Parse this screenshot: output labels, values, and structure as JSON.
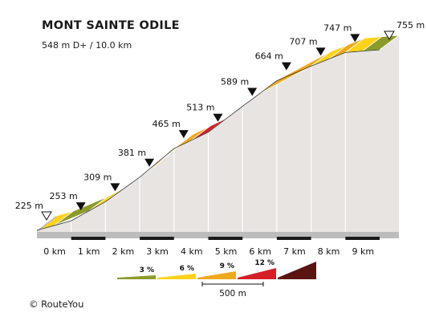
{
  "header": {
    "title": "MONT SAINTE ODILE",
    "subtitle": "548 m D+ / 10.0 km"
  },
  "footer": {
    "credit": "©  RouteYou"
  },
  "colors": {
    "side": "#e7e4e2",
    "base": "#bcbcbc",
    "axis_dark": "#1a1a1a",
    "grade_3": "#8b9b2a",
    "grade_6": "#ffd21a",
    "grade_9": "#f0a91c",
    "grade_12": "#d41f27",
    "grade_max": "#5a1412"
  },
  "chart_data": {
    "type": "area",
    "title": "MONT SAINTE ODILE",
    "subtitle": "548 m D+ / 10.0 km",
    "x_unit": "km",
    "y_unit": "m",
    "xlim": [
      0,
      10
    ],
    "x_ticks": [
      0,
      1,
      2,
      3,
      4,
      5,
      6,
      7,
      8,
      9
    ],
    "x_tick_labels": [
      "0 km",
      "1 km",
      "2 km",
      "3 km",
      "4 km",
      "5 km",
      "6 km",
      "7 km",
      "8 km",
      "9 km"
    ],
    "profile": {
      "x": [
        0,
        1,
        2,
        3,
        4,
        5,
        6,
        7,
        8,
        9,
        10
      ],
      "y": [
        225,
        253,
        309,
        381,
        465,
        513,
        589,
        664,
        707,
        747,
        755
      ]
    },
    "markers": [
      {
        "x": 0,
        "label": "225 m",
        "kind": "start"
      },
      {
        "x": 1,
        "label": "253 m",
        "kind": "point"
      },
      {
        "x": 2,
        "label": "309 m",
        "kind": "point"
      },
      {
        "x": 3,
        "label": "381 m",
        "kind": "point"
      },
      {
        "x": 4,
        "label": "465 m",
        "kind": "point"
      },
      {
        "x": 5,
        "label": "513 m",
        "kind": "point"
      },
      {
        "x": 6,
        "label": "589 m",
        "kind": "point"
      },
      {
        "x": 7,
        "label": "664 m",
        "kind": "point"
      },
      {
        "x": 8,
        "label": "707 m",
        "kind": "point"
      },
      {
        "x": 9,
        "label": "747 m",
        "kind": "point"
      },
      {
        "x": 10,
        "label": "755 m",
        "kind": "end"
      }
    ],
    "segments": [
      {
        "from": 0.0,
        "to": 0.5,
        "grade_class": "6"
      },
      {
        "from": 0.5,
        "to": 1.5,
        "grade_class": "3"
      },
      {
        "from": 1.5,
        "to": 2.0,
        "grade_class": "6"
      },
      {
        "from": 2.0,
        "to": 2.5,
        "grade_class": "9"
      },
      {
        "from": 2.5,
        "to": 3.0,
        "grade_class": "6"
      },
      {
        "from": 3.0,
        "to": 3.5,
        "grade_class": "9"
      },
      {
        "from": 3.5,
        "to": 4.0,
        "grade_class": "6"
      },
      {
        "from": 4.0,
        "to": 4.5,
        "grade_class": "9"
      },
      {
        "from": 4.5,
        "to": 5.0,
        "grade_class": "12"
      },
      {
        "from": 5.0,
        "to": 5.5,
        "grade_class": "6"
      },
      {
        "from": 5.5,
        "to": 6.0,
        "grade_class": "9"
      },
      {
        "from": 6.0,
        "to": 6.5,
        "grade_class": "6"
      },
      {
        "from": 6.5,
        "to": 8.0,
        "grade_class": "9"
      },
      {
        "from": 8.0,
        "to": 8.5,
        "grade_class": "6"
      },
      {
        "from": 8.5,
        "to": 9.0,
        "grade_class": "9"
      },
      {
        "from": 9.0,
        "to": 9.5,
        "grade_class": "6"
      },
      {
        "from": 9.5,
        "to": 10.0,
        "grade_class": "3"
      }
    ],
    "legend": {
      "items": [
        {
          "label": "3 %",
          "grade_class": "3"
        },
        {
          "label": "6 %",
          "grade_class": "6"
        },
        {
          "label": "9 %",
          "grade_class": "9"
        },
        {
          "label": "12 %",
          "grade_class": "12"
        },
        {
          "label": "",
          "grade_class": "max"
        }
      ],
      "scale_label": "500 m"
    }
  }
}
